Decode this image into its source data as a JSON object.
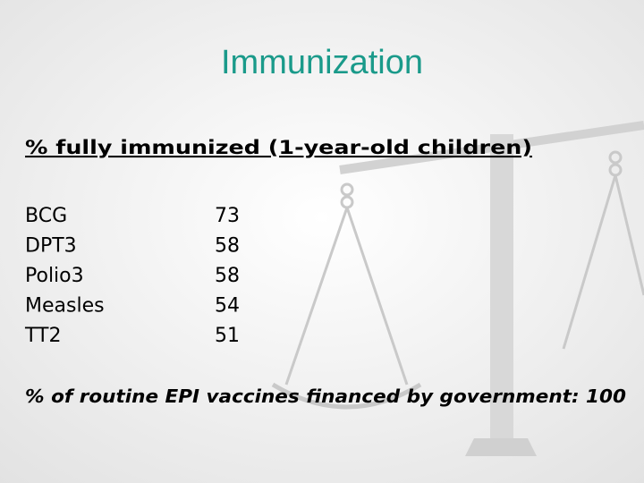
{
  "title": "Immunization",
  "subtitle": "% fully immunized (1-year-old children)",
  "table": {
    "rows": [
      [
        "BCG",
        73
      ],
      [
        "DPT3",
        58
      ],
      [
        "Polio3",
        58
      ],
      [
        "Measles",
        54
      ],
      [
        "TT2",
        51
      ]
    ]
  },
  "footer": "% of routine EPI vaccines financed by government: 100"
}
